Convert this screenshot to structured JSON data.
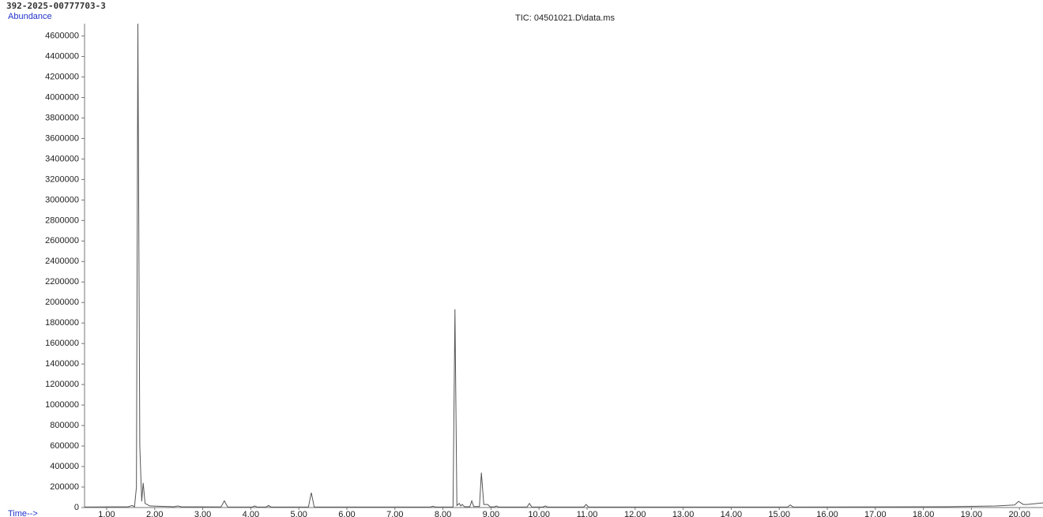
{
  "chart_data": {
    "type": "line",
    "sample_id": "392-2025-00777703-3",
    "title": "TIC: 04501021.D\\data.ms",
    "ylabel": "Abundance",
    "xlabel": "Time-->",
    "xlim": [
      0.54,
      20.49
    ],
    "ylim": [
      0,
      4720000
    ],
    "xticks": [
      {
        "value": 1,
        "label": "1.00"
      },
      {
        "value": 2,
        "label": "2.00"
      },
      {
        "value": 3,
        "label": "3.00"
      },
      {
        "value": 4,
        "label": "4.00"
      },
      {
        "value": 5,
        "label": "5.00"
      },
      {
        "value": 6,
        "label": "6.00"
      },
      {
        "value": 7,
        "label": "7.00"
      },
      {
        "value": 8,
        "label": "8.00"
      },
      {
        "value": 9,
        "label": "9.00"
      },
      {
        "value": 10,
        "label": "10.00"
      },
      {
        "value": 11,
        "label": "11.00"
      },
      {
        "value": 12,
        "label": "12.00"
      },
      {
        "value": 13,
        "label": "13.00"
      },
      {
        "value": 14,
        "label": "14.00"
      },
      {
        "value": 15,
        "label": "15.00"
      },
      {
        "value": 16,
        "label": "16.00"
      },
      {
        "value": 17,
        "label": "17.00"
      },
      {
        "value": 18,
        "label": "18.00"
      },
      {
        "value": 19,
        "label": "19.00"
      },
      {
        "value": 20,
        "label": "20.00"
      }
    ],
    "yticks": [
      0,
      200000,
      400000,
      600000,
      800000,
      1000000,
      1200000,
      1400000,
      1600000,
      1800000,
      2000000,
      2200000,
      2400000,
      2600000,
      2800000,
      3000000,
      3200000,
      3400000,
      3600000,
      3800000,
      4000000,
      4200000,
      4400000,
      4600000
    ],
    "x": [
      0.54,
      1.45,
      1.53,
      1.58,
      1.62,
      1.65,
      1.69,
      1.73,
      1.76,
      1.8,
      1.9,
      2.4,
      2.48,
      2.56,
      3.38,
      3.45,
      3.52,
      4.03,
      4.08,
      4.13,
      4.32,
      4.37,
      4.42,
      5.2,
      5.26,
      5.32,
      7.74,
      7.79,
      7.84,
      8.21,
      8.25,
      8.29,
      8.34,
      8.37,
      8.4,
      8.45,
      8.56,
      8.6,
      8.64,
      8.76,
      8.8,
      8.85,
      8.93,
      8.98,
      9.07,
      9.11,
      9.16,
      9.75,
      9.8,
      9.85,
      10.08,
      10.13,
      10.18,
      10.93,
      10.98,
      11.03,
      15.17,
      15.23,
      15.29,
      18.5,
      19.5,
      19.9,
      19.98,
      20.08,
      20.16,
      20.49
    ],
    "series": [
      {
        "name": "TIC",
        "color": "#555555",
        "values": [
          5000,
          8000,
          20000,
          8000,
          200000,
          4720000,
          600000,
          60000,
          240000,
          40000,
          15000,
          8000,
          15000,
          7000,
          6000,
          65000,
          6000,
          5000,
          15000,
          5000,
          5000,
          20000,
          5000,
          5000,
          145000,
          5000,
          5000,
          12000,
          5000,
          5000,
          1935000,
          20000,
          40000,
          15000,
          30000,
          8000,
          8000,
          65000,
          10000,
          10000,
          340000,
          30000,
          30000,
          8000,
          6000,
          15000,
          5000,
          5000,
          40000,
          5000,
          5000,
          15000,
          5000,
          5000,
          30000,
          5000,
          5000,
          25000,
          5000,
          8000,
          15000,
          25000,
          60000,
          30000,
          30000,
          45000
        ]
      }
    ]
  }
}
